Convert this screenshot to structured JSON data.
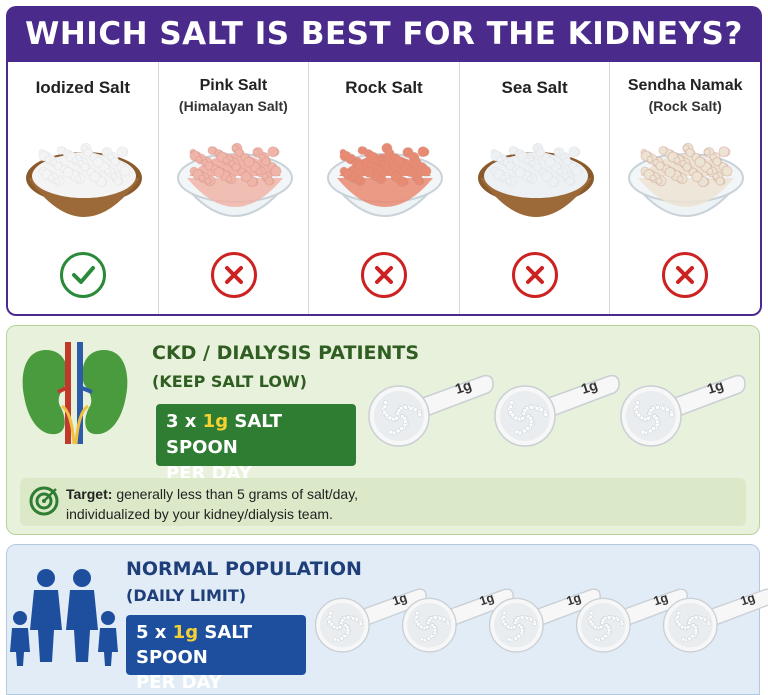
{
  "title": "WHICH SALT IS BEST FOR THE KIDNEYS?",
  "salts": [
    {
      "name": "Iodized Salt",
      "sub": "",
      "verdict": "good",
      "bowl": "wood",
      "crystal": "#f4f4f4"
    },
    {
      "name": "Pink Salt",
      "sub": "(Himalayan Salt)",
      "verdict": "bad",
      "bowl": "glass",
      "crystal": "#f0b4a8"
    },
    {
      "name": "Rock Salt",
      "sub": "",
      "verdict": "bad",
      "bowl": "glass",
      "crystal": "#e98a72"
    },
    {
      "name": "Sea Salt",
      "sub": "",
      "verdict": "bad",
      "bowl": "wood",
      "crystal": "#eef1f4"
    },
    {
      "name": "Sendha Namak",
      "sub": "(Rock Salt)",
      "verdict": "bad",
      "bowl": "glass",
      "crystal": "#ece3d2"
    }
  ],
  "ckd": {
    "heading": "CKD / DIALYSIS PATIENTS",
    "sub": "(KEEP SALT LOW)",
    "badge_prefix": "3 x ",
    "badge_amount": "1g",
    "badge_suffix": " SALT SPOON",
    "badge_line2": "PER DAY",
    "spoon_label": "1g",
    "spoon_count": 3,
    "target_label": "Target:",
    "target_line1": "generally less than 5 grams of salt/day,",
    "target_line2": "individualized by your kidney/dialysis team."
  },
  "normal": {
    "heading": "NORMAL POPULATION",
    "sub": "(DAILY LIMIT)",
    "badge_prefix": "5 x ",
    "badge_amount": "1g",
    "badge_suffix": " SALT SPOON",
    "badge_line2": "PER DAY",
    "spoon_label": "1g",
    "spoon_count": 5
  },
  "colors": {
    "brand": "#4a2a8a",
    "ckd_green": "#2e7d32",
    "normal_blue": "#1d4f9e",
    "good": "#2a8a3a",
    "bad": "#cc2222",
    "highlight": "#f5d232"
  },
  "icons": {
    "good": "check-icon",
    "bad": "cross-icon",
    "ckd": "kidney-icon",
    "target": "target-icon",
    "normal": "family-icon"
  }
}
